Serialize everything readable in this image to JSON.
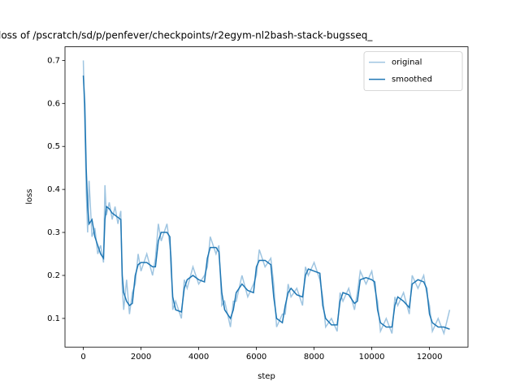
{
  "chart_data": {
    "type": "line",
    "title": "loss of /pscratch/sd/p/penfever/checkpoints/r2egym-nl2bash-stack-bugsseq_",
    "xlabel": "step",
    "ylabel": "loss",
    "x": [
      0,
      50,
      100,
      150,
      200,
      300,
      400,
      500,
      600,
      700,
      750,
      800,
      900,
      1000,
      1100,
      1200,
      1300,
      1350,
      1400,
      1500,
      1600,
      1700,
      1800,
      1900,
      2000,
      2200,
      2400,
      2500,
      2600,
      2700,
      2900,
      3000,
      3050,
      3100,
      3200,
      3400,
      3500,
      3600,
      3800,
      4000,
      4200,
      4300,
      4400,
      4600,
      4700,
      4800,
      4900,
      5100,
      5200,
      5300,
      5500,
      5700,
      5900,
      6000,
      6100,
      6300,
      6500,
      6600,
      6700,
      6900,
      7000,
      7100,
      7200,
      7400,
      7600,
      7700,
      7800,
      8000,
      8200,
      8300,
      8400,
      8600,
      8800,
      8900,
      9000,
      9200,
      9400,
      9500,
      9600,
      9800,
      10000,
      10100,
      10200,
      10300,
      10500,
      10700,
      10800,
      10900,
      11100,
      11300,
      11400,
      11600,
      11800,
      11900,
      12000,
      12100,
      12300,
      12500,
      12700
    ],
    "series": [
      {
        "name": "original",
        "color": "#9fc5e1",
        "values": [
          0.7,
          0.55,
          0.4,
          0.3,
          0.42,
          0.29,
          0.31,
          0.25,
          0.27,
          0.23,
          0.41,
          0.34,
          0.37,
          0.33,
          0.36,
          0.32,
          0.35,
          0.17,
          0.12,
          0.19,
          0.11,
          0.16,
          0.18,
          0.25,
          0.21,
          0.25,
          0.2,
          0.24,
          0.32,
          0.28,
          0.32,
          0.27,
          0.24,
          0.12,
          0.14,
          0.1,
          0.19,
          0.17,
          0.22,
          0.18,
          0.2,
          0.22,
          0.29,
          0.25,
          0.27,
          0.13,
          0.14,
          0.08,
          0.14,
          0.14,
          0.2,
          0.15,
          0.18,
          0.2,
          0.26,
          0.22,
          0.24,
          0.18,
          0.08,
          0.11,
          0.11,
          0.18,
          0.15,
          0.17,
          0.13,
          0.22,
          0.2,
          0.23,
          0.19,
          0.15,
          0.08,
          0.1,
          0.07,
          0.16,
          0.14,
          0.17,
          0.12,
          0.16,
          0.21,
          0.18,
          0.21,
          0.17,
          0.14,
          0.07,
          0.1,
          0.065,
          0.15,
          0.13,
          0.16,
          0.11,
          0.2,
          0.17,
          0.2,
          0.16,
          0.13,
          0.07,
          0.1,
          0.065,
          0.12
        ]
      },
      {
        "name": "smoothed",
        "color": "#1f77b4",
        "values": [
          0.665,
          0.6,
          0.45,
          0.36,
          0.32,
          0.33,
          0.29,
          0.27,
          0.25,
          0.24,
          0.33,
          0.36,
          0.355,
          0.345,
          0.34,
          0.335,
          0.33,
          0.2,
          0.16,
          0.14,
          0.13,
          0.135,
          0.2,
          0.225,
          0.23,
          0.23,
          0.22,
          0.22,
          0.28,
          0.3,
          0.3,
          0.29,
          0.21,
          0.15,
          0.12,
          0.115,
          0.17,
          0.19,
          0.2,
          0.19,
          0.185,
          0.24,
          0.265,
          0.265,
          0.255,
          0.16,
          0.12,
          0.1,
          0.12,
          0.16,
          0.18,
          0.165,
          0.16,
          0.22,
          0.235,
          0.235,
          0.225,
          0.15,
          0.1,
          0.09,
          0.13,
          0.16,
          0.17,
          0.155,
          0.15,
          0.2,
          0.215,
          0.21,
          0.205,
          0.13,
          0.1,
          0.085,
          0.085,
          0.14,
          0.16,
          0.155,
          0.135,
          0.14,
          0.19,
          0.195,
          0.19,
          0.185,
          0.12,
          0.09,
          0.08,
          0.08,
          0.13,
          0.15,
          0.14,
          0.125,
          0.18,
          0.19,
          0.185,
          0.17,
          0.11,
          0.09,
          0.08,
          0.08,
          0.075
        ]
      }
    ],
    "xlim": [
      -635,
      13335
    ],
    "ylim": [
      0.0333,
      0.7317
    ],
    "xticks": [
      0,
      2000,
      4000,
      6000,
      8000,
      10000,
      12000
    ],
    "yticks": [
      0.1,
      0.2,
      0.3,
      0.4,
      0.5,
      0.6,
      0.7
    ],
    "legend": "upper right"
  }
}
